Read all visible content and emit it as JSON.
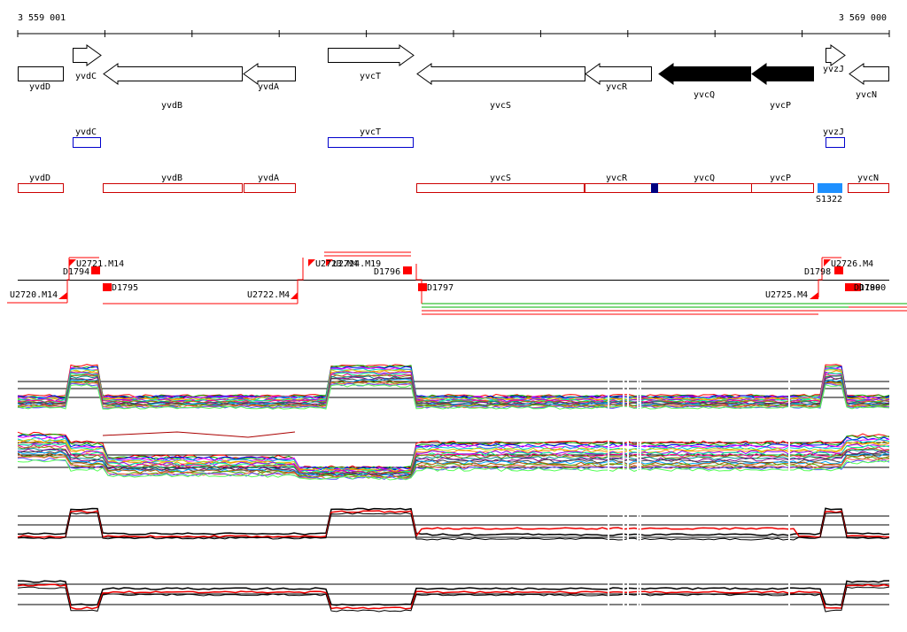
{
  "coords": {
    "start": "3 559 001",
    "end": "3 569 000"
  },
  "colors": {
    "annotation_outline": "#000000",
    "annotation_filled": "#000000",
    "blue_box": "#0000cc",
    "red_box": "#cc0000",
    "navy_marker": "#000080",
    "cyan_block": "#1e90ff",
    "promoter_red": "#ff0000",
    "trace_red": "#ee0000",
    "trace_black": "#000000"
  },
  "genes": [
    {
      "name": "yvdD",
      "dir": "none",
      "filled": false
    },
    {
      "name": "yvdC",
      "dir": "right",
      "filled": false
    },
    {
      "name": "yvdB",
      "dir": "left",
      "filled": false
    },
    {
      "name": "yvdA",
      "dir": "left",
      "filled": false
    },
    {
      "name": "yvcT",
      "dir": "right",
      "filled": false
    },
    {
      "name": "yvcS",
      "dir": "left",
      "filled": false
    },
    {
      "name": "yvcR",
      "dir": "left",
      "filled": false
    },
    {
      "name": "yvcQ",
      "dir": "left",
      "filled": true
    },
    {
      "name": "yvcP",
      "dir": "left",
      "filled": true
    },
    {
      "name": "yvzJ",
      "dir": "right",
      "filled": false
    },
    {
      "name": "yvcN",
      "dir": "left",
      "filled": false
    }
  ],
  "blue_features": [
    {
      "name": "yvdC"
    },
    {
      "name": "yvcT"
    },
    {
      "name": "yvzJ"
    }
  ],
  "red_features": [
    {
      "name": "yvdD"
    },
    {
      "name": "yvdB"
    },
    {
      "name": "yvdA"
    },
    {
      "name": "yvcS"
    },
    {
      "name": "yvcR"
    },
    {
      "name": "yvcQ"
    },
    {
      "name": "yvcP"
    },
    {
      "name": "yvcN"
    }
  ],
  "special_feature": {
    "name": "S1322"
  },
  "regulatory_labels": [
    {
      "text": "U2720.M14"
    },
    {
      "text": "U2721.M14"
    },
    {
      "text": "D1794"
    },
    {
      "text": "D1795"
    },
    {
      "text": "U2722.M4"
    },
    {
      "text": "U2723.M4"
    },
    {
      "text": "U2724.M19"
    },
    {
      "text": "D1796"
    },
    {
      "text": "D1797"
    },
    {
      "text": "U2725.M4"
    },
    {
      "text": "D1798"
    },
    {
      "text": "U2726.M4"
    },
    {
      "text": "D1799"
    },
    {
      "text": "D1800"
    }
  ],
  "expression_panels": [
    {
      "kind": "multi"
    },
    {
      "kind": "multi"
    },
    {
      "kind": "pair"
    },
    {
      "kind": "pair"
    }
  ]
}
